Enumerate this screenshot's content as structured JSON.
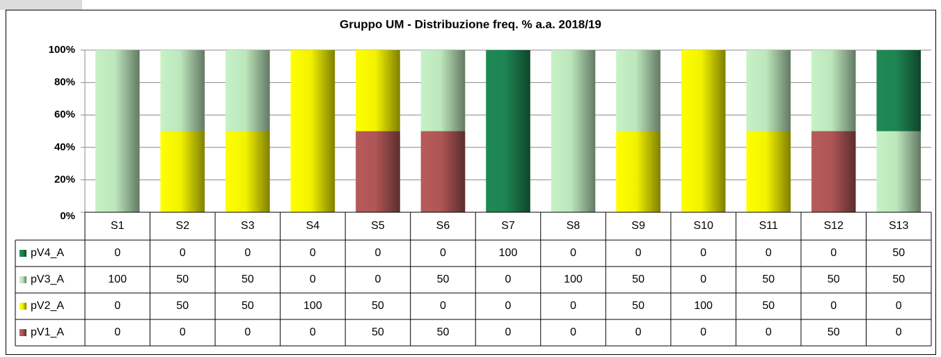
{
  "chart_data": {
    "type": "stacked_bar_100",
    "title": "Gruppo UM - Distribuzione freq. % a.a. 2018/19",
    "categories": [
      "S1",
      "S2",
      "S3",
      "S4",
      "S5",
      "S6",
      "S7",
      "S8",
      "S9",
      "S10",
      "S11",
      "S12",
      "S13"
    ],
    "series": [
      {
        "name": "pV4_A",
        "color": "#1f8a55",
        "values": [
          0,
          0,
          0,
          0,
          0,
          0,
          100,
          0,
          0,
          0,
          0,
          0,
          50
        ]
      },
      {
        "name": "pV3_A",
        "color": "#c6f2c6",
        "values": [
          100,
          50,
          50,
          0,
          0,
          50,
          0,
          100,
          50,
          0,
          50,
          50,
          50
        ]
      },
      {
        "name": "pV2_A",
        "color": "#ffff00",
        "values": [
          0,
          50,
          50,
          100,
          50,
          0,
          0,
          0,
          50,
          100,
          50,
          0,
          0
        ]
      },
      {
        "name": "pV1_A",
        "color": "#b85a5a",
        "values": [
          0,
          0,
          0,
          0,
          50,
          50,
          0,
          0,
          0,
          0,
          0,
          50,
          0
        ]
      }
    ],
    "ylim": [
      0,
      100
    ],
    "yticks": [
      {
        "value": 0,
        "label": "0%"
      },
      {
        "value": 20,
        "label": "20%"
      },
      {
        "value": 40,
        "label": "40%"
      },
      {
        "value": 60,
        "label": "60%"
      },
      {
        "value": 80,
        "label": "80%"
      },
      {
        "value": 100,
        "label": "100%"
      }
    ],
    "grid": true
  }
}
